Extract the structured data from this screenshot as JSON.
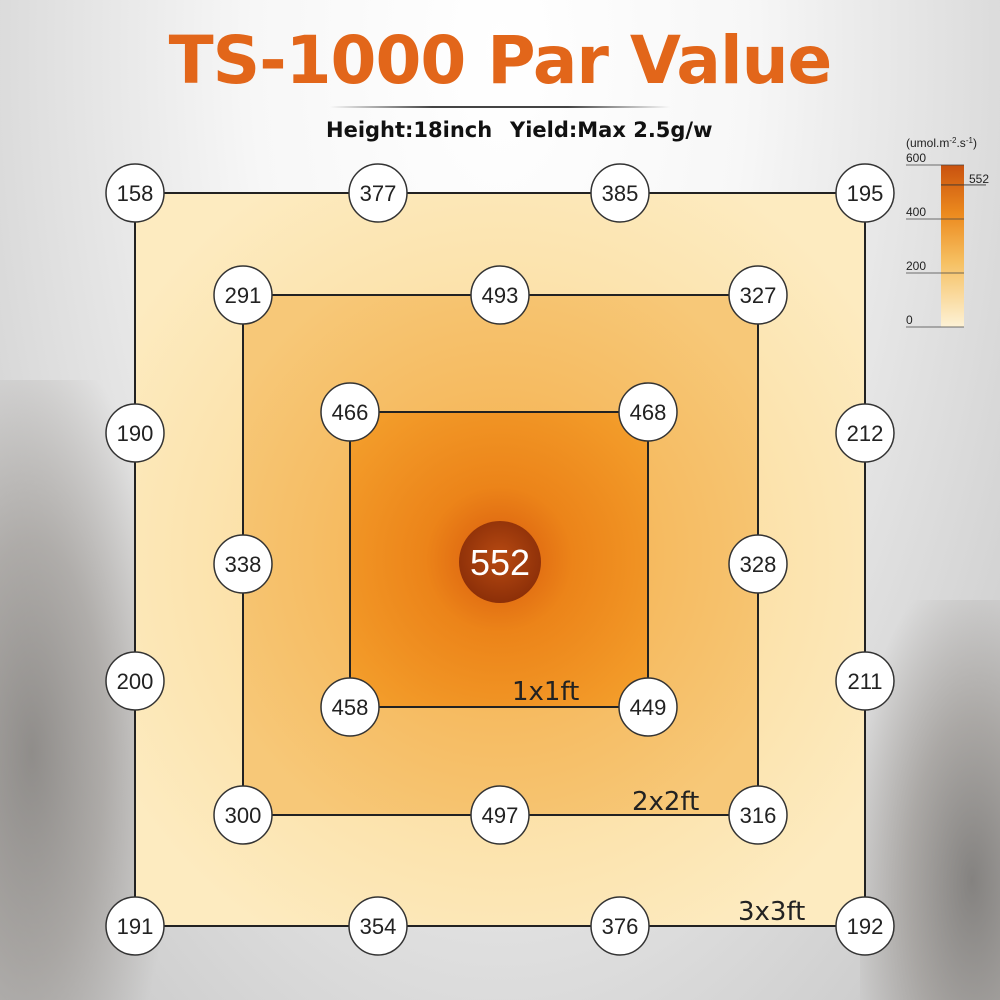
{
  "title": "TS-1000 Par Value",
  "height_text": "Height:18inch",
  "yield_text": "Yield:Max 2.5g/w",
  "colors": {
    "title": "#e2661a",
    "outer_zone": "#fbe3a6",
    "middle_zone": "#f6be62",
    "inner_zone": "#ec8a1e",
    "center": "#a23a0c"
  },
  "chart_data": {
    "type": "heatmap",
    "title": "TS-1000 Par Value",
    "zones": [
      "1x1ft",
      "2x2ft",
      "3x3ft"
    ],
    "center": {
      "label": "552",
      "value": 552
    },
    "zone_1x1ft": {
      "name": "1x1ft",
      "values": [
        466,
        468,
        458,
        449
      ]
    },
    "zone_2x2ft": {
      "name": "2x2ft",
      "values": [
        291,
        493,
        327,
        338,
        328,
        300,
        497,
        316
      ]
    },
    "zone_3x3ft": {
      "name": "3x3ft",
      "values": [
        158,
        377,
        385,
        195,
        190,
        212,
        200,
        211,
        191,
        354,
        376,
        192
      ]
    },
    "legend": {
      "unit": "(umol.m",
      "unit_sup": "-2",
      "unit_mid": ".s",
      "unit_sup2": "-1",
      "unit_end": ")",
      "ticks": [
        "600",
        "400",
        "200",
        "0"
      ],
      "tick_values": [
        600,
        400,
        200,
        0
      ],
      "marker": "552",
      "marker_value": 552,
      "range": [
        0,
        600
      ]
    }
  }
}
